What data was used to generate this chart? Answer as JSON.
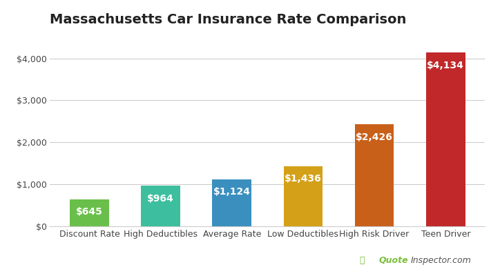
{
  "title": "Massachusetts Car Insurance Rate Comparison",
  "categories": [
    "Discount Rate",
    "High Deductibles",
    "Average Rate",
    "Low Deductibles",
    "High Risk Driver",
    "Teen Driver"
  ],
  "values": [
    645,
    964,
    1124,
    1436,
    2426,
    4134
  ],
  "bar_colors": [
    "#6abf4b",
    "#3dbf9f",
    "#3a8fbf",
    "#d4a017",
    "#c8601a",
    "#c0282a"
  ],
  "label_texts": [
    "$645",
    "$964",
    "$1,124",
    "$1,436",
    "$2,426",
    "$4,134"
  ],
  "label_color": "#ffffff",
  "ylim": [
    0,
    4600
  ],
  "yticks": [
    0,
    1000,
    2000,
    3000,
    4000
  ],
  "ytick_labels": [
    "$0",
    "$1,000",
    "$2,000",
    "$3,000",
    "$4,000"
  ],
  "title_fontsize": 14,
  "label_fontsize": 10,
  "tick_fontsize": 9,
  "background_color": "#ffffff",
  "grid_color": "#cccccc",
  "watermark_color_icon": "#7abf3a",
  "watermark_color_bold": "#7abf3a",
  "watermark_color_normal": "#555555"
}
